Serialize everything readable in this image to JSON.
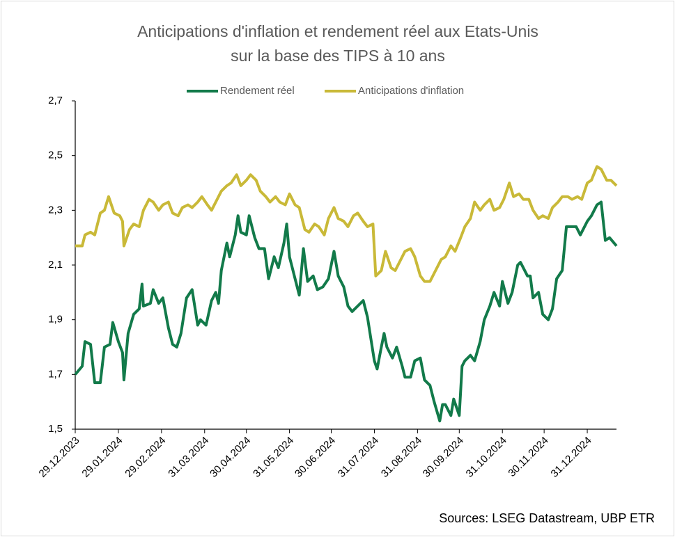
{
  "chart_data": {
    "type": "line",
    "title": [
      "Anticipations d'inflation et rendement réel aux Etats-Unis",
      "sur la base des TIPS à 10 ans"
    ],
    "source": "Sources: LSEG Datastream, UBP ETR",
    "xlim": [
      "29.12.2023",
      "21.01.2025"
    ],
    "xticks": [
      "29.12.2023",
      "29.01.2024",
      "29.02.2024",
      "31.03.2024",
      "30.04.2024",
      "31.05.2024",
      "30.06.2024",
      "31.07.2024",
      "31.08.2024",
      "30.09.2024",
      "31.10.2024",
      "30.11.2024",
      "31.12.2024"
    ],
    "ylim": [
      1.5,
      2.7
    ],
    "yticks": [
      {
        "value": 1.5,
        "label": "1,5"
      },
      {
        "value": 1.7,
        "label": "1,7"
      },
      {
        "value": 1.9,
        "label": "1,9"
      },
      {
        "value": 2.1,
        "label": "2,1"
      },
      {
        "value": 2.3,
        "label": "2,3"
      },
      {
        "value": 2.5,
        "label": "2,5"
      },
      {
        "value": 2.7,
        "label": "2,7"
      }
    ],
    "legend": "top",
    "series": [
      {
        "name": "Rendement réel",
        "color": "#127a4a",
        "x": [
          "29.12.2023",
          "03.01.2024",
          "05.01.2024",
          "09.01.2024",
          "12.01.2024",
          "16.01.2024",
          "19.01.2024",
          "23.01.2024",
          "25.01.2024",
          "29.01.2024",
          "01.02.2024",
          "02.02.2024",
          "05.02.2024",
          "09.02.2024",
          "13.02.2024",
          "15.02.2024",
          "16.02.2024",
          "21.02.2024",
          "23.02.2024",
          "27.02.2024",
          "01.03.2024",
          "05.03.2024",
          "08.03.2024",
          "11.03.2024",
          "14.03.2024",
          "18.03.2024",
          "22.03.2024",
          "26.03.2024",
          "28.03.2024",
          "01.04.2024",
          "05.04.2024",
          "08.04.2024",
          "10.04.2024",
          "12.04.2024",
          "16.04.2024",
          "18.04.2024",
          "22.04.2024",
          "24.04.2024",
          "26.04.2024",
          "30.04.2024",
          "02.05.2024",
          "06.05.2024",
          "09.05.2024",
          "13.05.2024",
          "16.05.2024",
          "20.05.2024",
          "23.05.2024",
          "27.05.2024",
          "29.05.2024",
          "31.05.2024",
          "04.06.2024",
          "07.06.2024",
          "10.06.2024",
          "13.06.2024",
          "17.06.2024",
          "20.06.2024",
          "24.06.2024",
          "28.06.2024",
          "02.07.2024",
          "05.07.2024",
          "09.07.2024",
          "12.07.2024",
          "15.07.2024",
          "19.07.2024",
          "23.07.2024",
          "26.07.2024",
          "31.07.2024",
          "02.08.2024",
          "05.08.2024",
          "07.08.2024",
          "09.08.2024",
          "13.08.2024",
          "16.08.2024",
          "20.08.2024",
          "22.08.2024",
          "26.08.2024",
          "29.08.2024",
          "02.09.2024",
          "05.09.2024",
          "09.09.2024",
          "12.09.2024",
          "16.09.2024",
          "18.09.2024",
          "20.09.2024",
          "24.09.2024",
          "26.09.2024",
          "30.09.2024",
          "02.10.2024",
          "04.10.2024",
          "08.10.2024",
          "11.10.2024",
          "15.10.2024",
          "18.10.2024",
          "22.10.2024",
          "25.10.2024",
          "29.10.2024",
          "31.10.2024",
          "04.11.2024",
          "07.11.2024",
          "11.11.2024",
          "13.11.2024",
          "18.11.2024",
          "20.11.2024",
          "22.11.2024",
          "26.11.2024",
          "29.11.2024",
          "03.12.2024",
          "06.12.2024",
          "09.12.2024",
          "13.12.2024",
          "16.12.2024",
          "19.12.2024",
          "23.12.2024",
          "26.12.2024",
          "31.12.2024",
          "03.01.2025",
          "07.01.2025",
          "10.01.2025",
          "13.01.2025",
          "16.01.2025",
          "21.01.2025"
        ],
        "values": [
          1.7,
          1.73,
          1.82,
          1.81,
          1.67,
          1.67,
          1.8,
          1.81,
          1.89,
          1.82,
          1.78,
          1.68,
          1.85,
          1.92,
          1.94,
          2.03,
          1.95,
          1.96,
          2.01,
          1.96,
          1.98,
          1.87,
          1.81,
          1.8,
          1.85,
          1.98,
          2.01,
          1.88,
          1.9,
          1.88,
          1.97,
          2.0,
          1.96,
          2.08,
          2.18,
          2.13,
          2.21,
          2.28,
          2.22,
          2.21,
          2.28,
          2.2,
          2.16,
          2.16,
          2.05,
          2.13,
          2.09,
          2.18,
          2.25,
          2.13,
          2.05,
          1.99,
          2.16,
          2.04,
          2.06,
          2.01,
          2.02,
          2.05,
          2.15,
          2.06,
          2.02,
          1.95,
          1.93,
          1.95,
          1.97,
          1.91,
          1.75,
          1.72,
          1.8,
          1.85,
          1.8,
          1.76,
          1.8,
          1.73,
          1.69,
          1.69,
          1.75,
          1.76,
          1.68,
          1.66,
          1.6,
          1.53,
          1.59,
          1.59,
          1.55,
          1.61,
          1.55,
          1.73,
          1.75,
          1.77,
          1.75,
          1.82,
          1.9,
          1.95,
          2.0,
          1.95,
          2.04,
          1.96,
          2.0,
          2.1,
          2.11,
          2.06,
          2.06,
          1.98,
          2.0,
          1.92,
          1.9,
          1.94,
          2.05,
          2.08,
          2.24,
          2.24,
          2.24,
          2.21,
          2.26,
          2.28,
          2.32,
          2.33,
          2.19,
          2.2,
          2.17
        ]
      },
      {
        "name": "Anticipations d'inflation",
        "color": "#c9b938",
        "x": [
          "29.12.2023",
          "03.01.2024",
          "05.01.2024",
          "09.01.2024",
          "12.01.2024",
          "16.01.2024",
          "19.01.2024",
          "22.01.2024",
          "26.01.2024",
          "30.01.2024",
          "01.02.2024",
          "02.02.2024",
          "06.02.2024",
          "09.02.2024",
          "13.02.2024",
          "16.02.2024",
          "20.02.2024",
          "23.02.2024",
          "27.02.2024",
          "01.03.2024",
          "05.03.2024",
          "08.03.2024",
          "12.03.2024",
          "15.03.2024",
          "19.03.2024",
          "22.03.2024",
          "26.03.2024",
          "29.03.2024",
          "02.04.2024",
          "05.04.2024",
          "09.04.2024",
          "12.04.2024",
          "16.04.2024",
          "19.04.2024",
          "23.04.2024",
          "26.04.2024",
          "30.04.2024",
          "03.05.2024",
          "07.05.2024",
          "10.05.2024",
          "14.05.2024",
          "17.05.2024",
          "21.05.2024",
          "24.05.2024",
          "28.05.2024",
          "31.05.2024",
          "04.06.2024",
          "07.06.2024",
          "11.06.2024",
          "14.06.2024",
          "18.06.2024",
          "21.06.2024",
          "25.06.2024",
          "28.06.2024",
          "02.07.2024",
          "05.07.2024",
          "09.07.2024",
          "12.07.2024",
          "16.07.2024",
          "19.07.2024",
          "23.07.2024",
          "26.07.2024",
          "30.07.2024",
          "01.08.2024",
          "05.08.2024",
          "08.08.2024",
          "12.08.2024",
          "15.08.2024",
          "19.08.2024",
          "22.08.2024",
          "26.08.2024",
          "29.08.2024",
          "02.09.2024",
          "05.09.2024",
          "09.09.2024",
          "13.09.2024",
          "17.09.2024",
          "20.09.2024",
          "24.09.2024",
          "27.09.2024",
          "01.10.2024",
          "04.10.2024",
          "08.10.2024",
          "11.10.2024",
          "15.10.2024",
          "18.10.2024",
          "22.10.2024",
          "25.10.2024",
          "29.10.2024",
          "01.11.2024",
          "05.11.2024",
          "08.11.2024",
          "12.11.2024",
          "15.11.2024",
          "19.11.2024",
          "22.11.2024",
          "26.11.2024",
          "29.11.2024",
          "03.12.2024",
          "06.12.2024",
          "10.12.2024",
          "13.12.2024",
          "17.12.2024",
          "20.12.2024",
          "24.12.2024",
          "27.12.2024",
          "31.12.2024",
          "03.01.2025",
          "07.01.2025",
          "10.01.2025",
          "14.01.2025",
          "17.01.2025",
          "21.01.2025"
        ],
        "values": [
          2.17,
          2.17,
          2.21,
          2.22,
          2.21,
          2.29,
          2.3,
          2.35,
          2.29,
          2.28,
          2.26,
          2.17,
          2.23,
          2.25,
          2.24,
          2.3,
          2.34,
          2.33,
          2.3,
          2.32,
          2.33,
          2.29,
          2.28,
          2.31,
          2.32,
          2.31,
          2.33,
          2.35,
          2.32,
          2.3,
          2.34,
          2.37,
          2.39,
          2.4,
          2.43,
          2.39,
          2.41,
          2.43,
          2.41,
          2.37,
          2.35,
          2.33,
          2.35,
          2.33,
          2.32,
          2.36,
          2.32,
          2.31,
          2.23,
          2.22,
          2.25,
          2.24,
          2.21,
          2.27,
          2.31,
          2.27,
          2.26,
          2.24,
          2.28,
          2.29,
          2.26,
          2.24,
          2.25,
          2.06,
          2.08,
          2.15,
          2.09,
          2.08,
          2.12,
          2.15,
          2.16,
          2.13,
          2.06,
          2.04,
          2.04,
          2.08,
          2.12,
          2.13,
          2.17,
          2.15,
          2.2,
          2.24,
          2.27,
          2.33,
          2.3,
          2.32,
          2.34,
          2.3,
          2.31,
          2.34,
          2.4,
          2.35,
          2.36,
          2.34,
          2.34,
          2.3,
          2.27,
          2.28,
          2.27,
          2.31,
          2.33,
          2.35,
          2.35,
          2.34,
          2.35,
          2.34,
          2.4,
          2.41,
          2.46,
          2.45,
          2.41,
          2.41,
          2.39
        ]
      }
    ]
  }
}
